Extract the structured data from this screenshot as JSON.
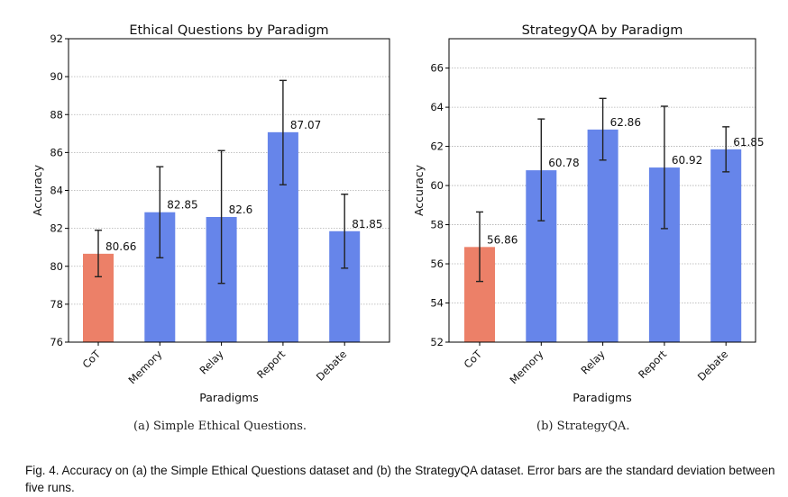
{
  "chart_data": [
    {
      "type": "bar",
      "title": "Ethical Questions by Paradigm",
      "xlabel": "Paradigms",
      "ylabel": "Accuracy",
      "categories": [
        "CoT",
        "Memory",
        "Relay",
        "Report",
        "Debate"
      ],
      "values": [
        80.66,
        82.85,
        82.6,
        87.07,
        81.85
      ],
      "value_labels": [
        "80.66",
        "82.85",
        "82.6",
        "87.07",
        "81.85"
      ],
      "error_low": [
        79.45,
        80.45,
        79.1,
        84.3,
        79.9
      ],
      "error_high": [
        81.9,
        85.25,
        86.1,
        89.8,
        83.8
      ],
      "ylim": [
        76,
        92
      ],
      "yticks": [
        76,
        78,
        80,
        82,
        84,
        86,
        88,
        90,
        92
      ],
      "grid": true,
      "bar_colors": [
        "#ec8068",
        "#6685ea",
        "#6685ea",
        "#6685ea",
        "#6685ea"
      ],
      "caption": "(a) Simple Ethical Questions."
    },
    {
      "type": "bar",
      "title": "StrategyQA by Paradigm",
      "xlabel": "Paradigms",
      "ylabel": "Accuracy",
      "categories": [
        "CoT",
        "Memory",
        "Relay",
        "Report",
        "Debate"
      ],
      "values": [
        56.86,
        60.78,
        62.86,
        60.92,
        61.85
      ],
      "value_labels": [
        "56.86",
        "60.78",
        "62.86",
        "60.92",
        "61.85"
      ],
      "error_low": [
        55.1,
        58.2,
        61.3,
        57.8,
        60.7
      ],
      "error_high": [
        58.65,
        63.4,
        64.45,
        64.05,
        63.0
      ],
      "ylim": [
        52,
        67.5
      ],
      "yticks": [
        52,
        54,
        56,
        58,
        60,
        62,
        64,
        66
      ],
      "grid": true,
      "bar_colors": [
        "#ec8068",
        "#6685ea",
        "#6685ea",
        "#6685ea",
        "#6685ea"
      ],
      "caption": "(b) StrategyQA."
    }
  ],
  "figure_caption": {
    "label": "Fig. 4.",
    "text": "Accuracy on (a) the Simple Ethical Questions dataset and (b) the StrategyQA dataset. Error bars are the standard deviation between five runs."
  }
}
